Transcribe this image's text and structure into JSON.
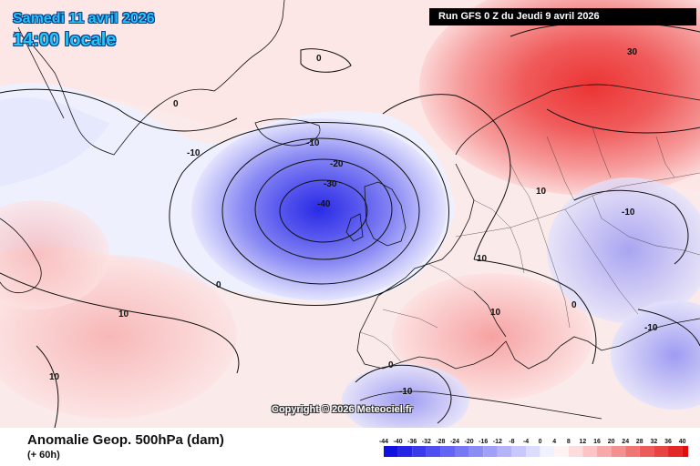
{
  "header": {
    "date": "Samedi 11 avril 2026",
    "time": "14:00 locale",
    "run": "Run GFS 0 Z du Jeudi 9 avril 2026"
  },
  "footer": {
    "title": "Anomalie Geop. 500hPa (dam)",
    "lead_time": "(+ 60h)",
    "copyright": "Copyright © 2026 Meteociel.fr"
  },
  "contour_labels": [
    {
      "text": "0",
      "kind": "neutral"
    },
    {
      "text": "0",
      "kind": "neutral"
    },
    {
      "text": "-10",
      "kind": "neg"
    },
    {
      "text": "-10",
      "kind": "neg"
    },
    {
      "text": "-20",
      "kind": "neg"
    },
    {
      "text": "-30",
      "kind": "neg"
    },
    {
      "text": "-40",
      "kind": "neg"
    },
    {
      "text": "0",
      "kind": "neutral"
    },
    {
      "text": "10",
      "kind": "pos"
    },
    {
      "text": "10",
      "kind": "pos"
    },
    {
      "text": "10",
      "kind": "pos"
    },
    {
      "text": "30",
      "kind": "pos"
    },
    {
      "text": "10",
      "kind": "pos"
    },
    {
      "text": "10",
      "kind": "pos"
    },
    {
      "text": "-10",
      "kind": "neg"
    },
    {
      "text": "0",
      "kind": "neutral"
    },
    {
      "text": "-10",
      "kind": "neg"
    },
    {
      "text": "0",
      "kind": "neutral"
    },
    {
      "text": "-10",
      "kind": "neg"
    }
  ],
  "legend": {
    "ticks": [
      "-44",
      "-40",
      "-36",
      "-32",
      "-28",
      "-24",
      "-20",
      "-16",
      "-12",
      "-8",
      "-4",
      "0",
      "4",
      "8",
      "12",
      "16",
      "20",
      "24",
      "28",
      "32",
      "36",
      "40"
    ],
    "colors": [
      "#1010e0",
      "#2525e6",
      "#3a3aec",
      "#4f4ff0",
      "#6464f2",
      "#7878f4",
      "#8c8cf6",
      "#a0a0f8",
      "#b4b4fa",
      "#c8c8fc",
      "#dcdcfe",
      "#f2f2ff",
      "#fff2f2",
      "#ffdcdc",
      "#fcc4c4",
      "#f8aaaa",
      "#f49090",
      "#f07676",
      "#ec5c5c",
      "#e84242",
      "#e42828",
      "#e00e0e"
    ]
  },
  "colors": {
    "date_text": "#22c6f4",
    "positive_anomaly": "#f06060",
    "negative_anomaly": "#3a3ae8"
  }
}
